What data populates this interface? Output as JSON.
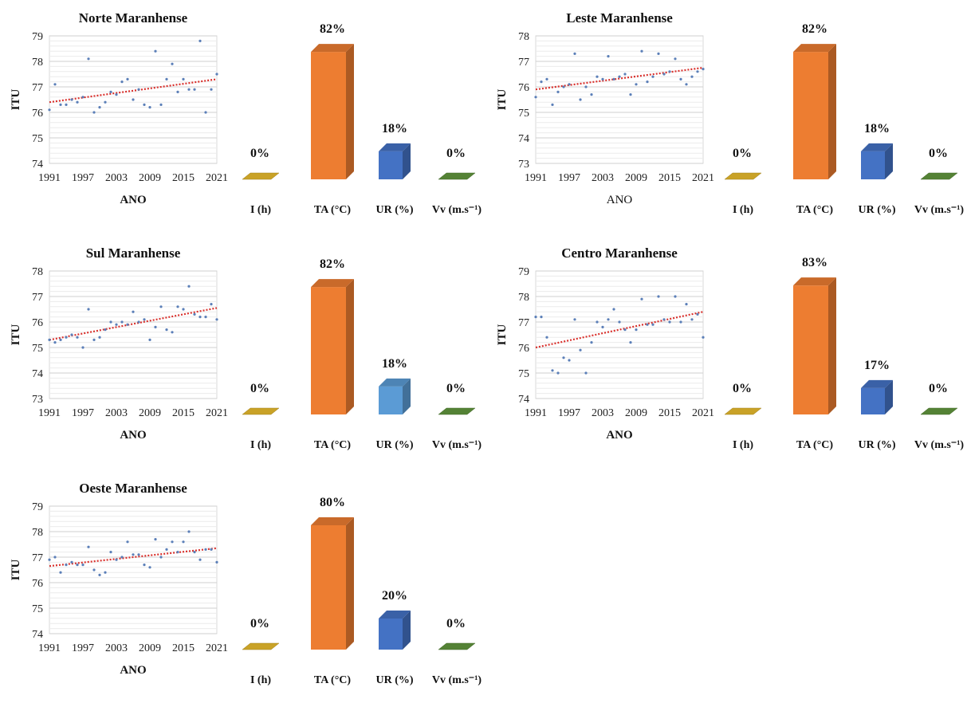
{
  "colors": {
    "I (h)": "#c9a227",
    "TA (°C)": "#ed7d31",
    "UR (%)": "#4472c4",
    "UR (%) light": "#5b9bd5",
    "Vv (m.s⁻¹)": "#548235",
    "trend": "#d9302c",
    "scatter": "#5b7fb8"
  },
  "chart_data": [
    {
      "type": "scatter",
      "title": "Norte Maranhense",
      "xlabel": "ANO",
      "ylabel": "ITU",
      "xlim": [
        1991,
        2021
      ],
      "ylim": [
        74,
        79
      ],
      "xticks": [
        "1991",
        "1997",
        "2003",
        "2009",
        "2015",
        "2021"
      ],
      "yticks": [
        "74",
        "75",
        "76",
        "77",
        "78",
        "79"
      ],
      "grid": true,
      "x": [
        1991,
        1992,
        1993,
        1994,
        1995,
        1996,
        1997,
        1998,
        1999,
        2000,
        2001,
        2002,
        2003,
        2004,
        2005,
        2006,
        2007,
        2008,
        2009,
        2010,
        2011,
        2012,
        2013,
        2014,
        2015,
        2016,
        2017,
        2018,
        2019,
        2020,
        2021
      ],
      "y": [
        76.1,
        77.1,
        76.3,
        76.3,
        76.5,
        76.4,
        76.6,
        78.1,
        76.0,
        76.2,
        76.4,
        76.8,
        76.7,
        77.2,
        77.3,
        76.5,
        76.9,
        76.3,
        76.2,
        78.4,
        76.3,
        77.3,
        77.9,
        76.8,
        77.3,
        76.9,
        76.9,
        78.8,
        76.0,
        76.9,
        77.5
      ],
      "trend": [
        76.4,
        77.3
      ]
    },
    {
      "type": "bar",
      "categories": [
        "I (h)",
        "TA (°C)",
        "UR (%)",
        "Vv (m.s⁻¹)"
      ],
      "values": [
        0,
        82,
        18,
        0
      ],
      "labels": [
        "0%",
        "82%",
        "18%",
        "0%"
      ]
    },
    {
      "type": "scatter",
      "title": "Leste Maranhense",
      "xlabel": "ANO",
      "ylabel": "ITU",
      "xlim": [
        1991,
        2021
      ],
      "ylim": [
        73,
        78
      ],
      "xticks": [
        "1991",
        "1997",
        "2003",
        "2009",
        "2015",
        "2021"
      ],
      "yticks": [
        "73",
        "74",
        "75",
        "76",
        "77",
        "78"
      ],
      "grid": true,
      "x": [
        1991,
        1992,
        1993,
        1994,
        1995,
        1996,
        1997,
        1998,
        1999,
        2000,
        2001,
        2002,
        2003,
        2004,
        2005,
        2006,
        2007,
        2008,
        2009,
        2010,
        2011,
        2012,
        2013,
        2014,
        2015,
        2016,
        2017,
        2018,
        2019,
        2020,
        2021
      ],
      "y": [
        75.6,
        76.2,
        76.3,
        75.3,
        75.8,
        76.0,
        76.1,
        77.3,
        75.5,
        76.0,
        75.7,
        76.4,
        76.3,
        77.2,
        76.3,
        76.4,
        76.5,
        75.7,
        76.1,
        77.4,
        76.2,
        76.4,
        77.3,
        76.5,
        76.6,
        77.1,
        76.3,
        76.1,
        76.4,
        76.6,
        76.7
      ],
      "trend": [
        75.9,
        76.75
      ]
    },
    {
      "type": "bar",
      "categories": [
        "I (h)",
        "TA (°C)",
        "UR (%)",
        "Vv (m.s⁻¹)"
      ],
      "values": [
        0,
        82,
        18,
        0
      ],
      "labels": [
        "0%",
        "82%",
        "18%",
        "0%"
      ]
    },
    {
      "type": "scatter",
      "title": "Sul Maranhense",
      "xlabel": "ANO",
      "ylabel": "ITU",
      "xlim": [
        1991,
        2021
      ],
      "ylim": [
        73,
        78
      ],
      "xticks": [
        "1991",
        "1997",
        "2003",
        "2009",
        "2015",
        "2021"
      ],
      "yticks": [
        "73",
        "74",
        "75",
        "76",
        "77",
        "78"
      ],
      "grid": true,
      "x": [
        1991,
        1992,
        1993,
        1994,
        1995,
        1996,
        1997,
        1998,
        1999,
        2000,
        2001,
        2002,
        2003,
        2004,
        2005,
        2006,
        2007,
        2008,
        2009,
        2010,
        2011,
        2012,
        2013,
        2014,
        2015,
        2016,
        2017,
        2018,
        2019,
        2020,
        2021
      ],
      "y": [
        75.3,
        75.2,
        75.3,
        75.4,
        75.5,
        75.4,
        75.0,
        76.5,
        75.3,
        75.4,
        75.7,
        76.0,
        75.9,
        76.0,
        75.9,
        76.4,
        76.0,
        76.1,
        75.3,
        75.8,
        76.6,
        75.7,
        75.6,
        76.6,
        76.5,
        77.4,
        76.3,
        76.2,
        76.2,
        76.7,
        76.1
      ],
      "trend": [
        75.3,
        76.55
      ]
    },
    {
      "type": "bar",
      "categories": [
        "I (h)",
        "TA (°C)",
        "UR (%)",
        "Vv (m.s⁻¹)"
      ],
      "values": [
        0,
        82,
        18,
        0
      ],
      "labels": [
        "0%",
        "82%",
        "18%",
        "0%"
      ],
      "highlight": "UR (%) light"
    },
    {
      "type": "scatter",
      "title": "Centro Maranhense",
      "xlabel": "ANO",
      "ylabel": "ITU",
      "xlim": [
        1991,
        2021
      ],
      "ylim": [
        74,
        79
      ],
      "xticks": [
        "1991",
        "1997",
        "2003",
        "2009",
        "2015",
        "2021"
      ],
      "yticks": [
        "74",
        "75",
        "76",
        "77",
        "78",
        "79"
      ],
      "grid": true,
      "x": [
        1991,
        1992,
        1993,
        1994,
        1995,
        1996,
        1997,
        1998,
        1999,
        2000,
        2001,
        2002,
        2003,
        2004,
        2005,
        2006,
        2007,
        2008,
        2009,
        2010,
        2011,
        2012,
        2013,
        2014,
        2015,
        2016,
        2017,
        2018,
        2019,
        2020,
        2021
      ],
      "y": [
        77.2,
        77.2,
        76.4,
        75.1,
        75.0,
        75.6,
        75.5,
        77.1,
        75.9,
        75.0,
        76.2,
        77.0,
        76.8,
        77.1,
        77.5,
        77.0,
        76.7,
        76.2,
        76.7,
        77.9,
        76.9,
        76.9,
        78.0,
        77.1,
        77.0,
        78.0,
        77.0,
        77.7,
        77.1,
        77.3,
        76.4
      ],
      "trend": [
        76.0,
        77.4
      ]
    },
    {
      "type": "bar",
      "categories": [
        "I (h)",
        "TA (°C)",
        "UR (%)",
        "Vv (m.s⁻¹)"
      ],
      "values": [
        0,
        83,
        17,
        0
      ],
      "labels": [
        "0%",
        "83%",
        "17%",
        "0%"
      ]
    },
    {
      "type": "scatter",
      "title": "Oeste Maranhense",
      "xlabel": "ANO",
      "ylabel": "ITU",
      "xlim": [
        1991,
        2021
      ],
      "ylim": [
        74,
        79
      ],
      "xticks": [
        "1991",
        "1997",
        "2003",
        "2009",
        "2015",
        "2021"
      ],
      "yticks": [
        "74",
        "75",
        "76",
        "77",
        "78",
        "79"
      ],
      "grid": true,
      "x": [
        1991,
        1992,
        1993,
        1994,
        1995,
        1996,
        1997,
        1998,
        1999,
        2000,
        2001,
        2002,
        2003,
        2004,
        2005,
        2006,
        2007,
        2008,
        2009,
        2010,
        2011,
        2012,
        2013,
        2014,
        2015,
        2016,
        2017,
        2018,
        2019,
        2020,
        2021
      ],
      "y": [
        76.9,
        77.0,
        76.4,
        76.7,
        76.8,
        76.7,
        76.7,
        77.4,
        76.5,
        76.3,
        76.4,
        77.2,
        76.9,
        77.0,
        77.6,
        77.1,
        77.1,
        76.7,
        76.6,
        77.7,
        77.0,
        77.3,
        77.6,
        77.2,
        77.6,
        78.0,
        77.2,
        76.9,
        77.3,
        77.3,
        76.8
      ],
      "trend": [
        76.65,
        77.35
      ]
    },
    {
      "type": "bar",
      "categories": [
        "I (h)",
        "TA (°C)",
        "UR (%)",
        "Vv (m.s⁻¹)"
      ],
      "values": [
        0,
        80,
        20,
        0
      ],
      "labels": [
        "0%",
        "80%",
        "20%",
        "0%"
      ]
    }
  ]
}
